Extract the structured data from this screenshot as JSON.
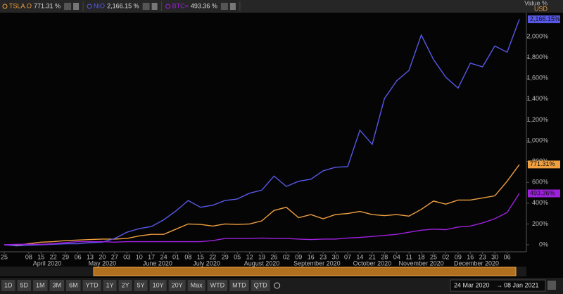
{
  "chart_data": {
    "type": "line",
    "y_axis_title": "Value %",
    "y_axis_unit": "USD",
    "categories": [
      "25",
      null,
      "08",
      "15",
      "22",
      "29",
      "06",
      "13",
      "20",
      "27",
      "03",
      "10",
      "17",
      "24",
      "01",
      "08",
      "15",
      "22",
      "29",
      "05",
      "12",
      "19",
      "26",
      "02",
      "09",
      "16",
      "23",
      "30",
      "07",
      "14",
      "21",
      "28",
      "04",
      "11",
      "18",
      "25",
      "02",
      "09",
      "16",
      "23",
      "30",
      "06",
      null
    ],
    "month_labels": [
      "April 2020",
      "May 2020",
      "June 2020",
      "July 2020",
      "August 2020",
      "September 2020",
      "October 2020",
      "November 2020",
      "December 2020"
    ],
    "series": [
      {
        "name": "TSLA.O",
        "legend_value": "771.31 %",
        "end_label": "771.31%",
        "color": "#f0a040",
        "values": [
          0,
          -5,
          10,
          25,
          30,
          40,
          45,
          50,
          55,
          55,
          60,
          85,
          100,
          100,
          150,
          200,
          195,
          180,
          200,
          195,
          200,
          230,
          330,
          360,
          260,
          290,
          250,
          290,
          300,
          320,
          290,
          280,
          290,
          275,
          340,
          420,
          390,
          430,
          430,
          450,
          470,
          610,
          771.31
        ]
      },
      {
        "name": "NIO",
        "legend_value": "2,166.15 %",
        "end_label": "2,166.15%",
        "color": "#5858e8",
        "values": [
          0,
          -10,
          -5,
          0,
          5,
          10,
          10,
          20,
          25,
          60,
          120,
          155,
          175,
          240,
          325,
          425,
          360,
          380,
          425,
          440,
          495,
          525,
          660,
          560,
          610,
          630,
          710,
          745,
          750,
          1100,
          965,
          1405,
          1575,
          1675,
          2015,
          1780,
          1610,
          1505,
          1745,
          1710,
          1910,
          1850,
          2166.15
        ]
      },
      {
        "name": "BTC=",
        "legend_value": "493.36 %",
        "end_label": "493.36%",
        "color": "#a020e0",
        "values": [
          0,
          5,
          5,
          5,
          10,
          20,
          30,
          30,
          30,
          25,
          30,
          30,
          30,
          30,
          30,
          30,
          30,
          40,
          60,
          60,
          60,
          65,
          60,
          60,
          55,
          50,
          55,
          55,
          65,
          70,
          80,
          90,
          100,
          120,
          140,
          150,
          145,
          170,
          180,
          210,
          250,
          310,
          493.36
        ]
      }
    ],
    "ylim": [
      -50,
      2230
    ],
    "yticks": [
      {
        "value": 0,
        "label": "0%"
      },
      {
        "value": 200,
        "label": "200%"
      },
      {
        "value": 400,
        "label": "400%"
      },
      {
        "value": 600,
        "label": "600%"
      },
      {
        "value": 800,
        "label": "800%"
      },
      {
        "value": 1000,
        "label": "1,000%"
      },
      {
        "value": 1200,
        "label": "1,200%"
      },
      {
        "value": 1400,
        "label": "1,400%"
      },
      {
        "value": 1600,
        "label": "1,600%"
      },
      {
        "value": 1800,
        "label": "1,800%"
      },
      {
        "value": 2000,
        "label": "2,000%"
      }
    ],
    "grid": false,
    "toolbar": {
      "buttons": [
        "1D",
        "5D",
        "1M",
        "3M",
        "6M",
        "YTD",
        "1Y",
        "2Y",
        "5Y",
        "10Y",
        "20Y",
        "Max",
        "WTD",
        "MTD",
        "QTD"
      ],
      "range_start": "24 Mar 2020",
      "range_end": "08 Jan 2021"
    }
  }
}
